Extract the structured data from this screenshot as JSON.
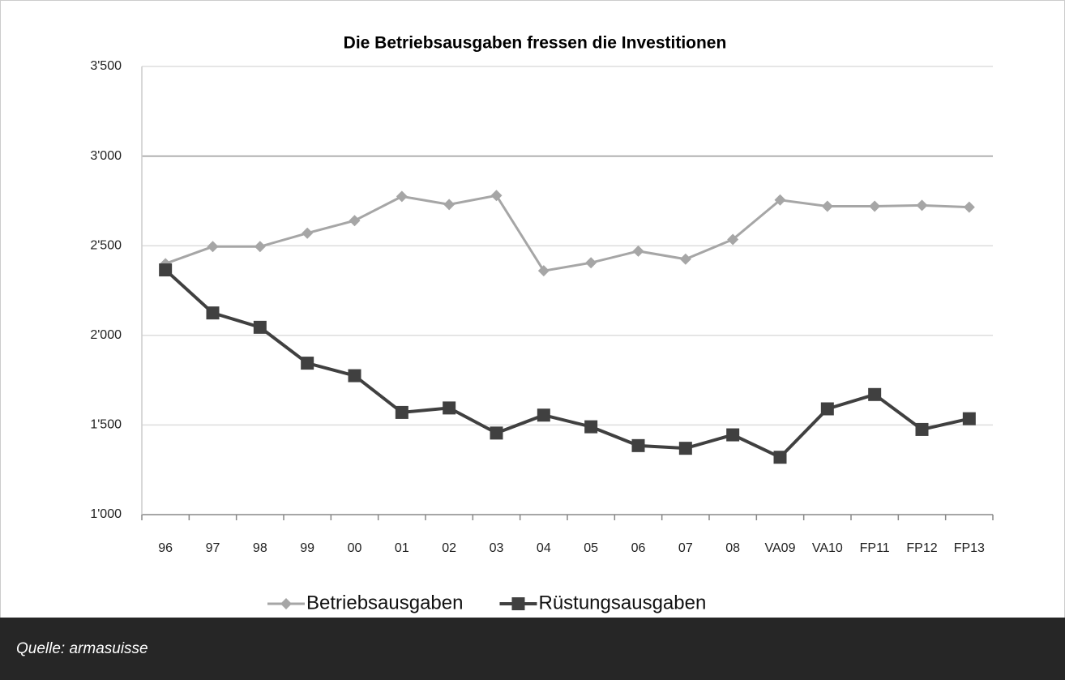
{
  "chart_data": {
    "type": "line",
    "title": "Die Betriebsausgaben fressen die Investitionen",
    "categories": [
      "96",
      "97",
      "98",
      "99",
      "00",
      "01",
      "02",
      "03",
      "04",
      "05",
      "06",
      "07",
      "08",
      "VA09",
      "VA10",
      "FP11",
      "FP12",
      "FP13"
    ],
    "series": [
      {
        "name": "Betriebsausgaben",
        "color": "#a6a6a6",
        "marker": "diamond",
        "values": [
          2400,
          2495,
          2495,
          2570,
          2640,
          2775,
          2730,
          2780,
          2360,
          2405,
          2470,
          2425,
          2535,
          2755,
          2720,
          2720,
          2725,
          2715
        ]
      },
      {
        "name": "Rüstungsausgaben",
        "color": "#404040",
        "marker": "square",
        "values": [
          2365,
          2125,
          2045,
          1845,
          1775,
          1570,
          1595,
          1455,
          1555,
          1490,
          1385,
          1370,
          1445,
          1320,
          1590,
          1670,
          1475,
          1535
        ]
      }
    ],
    "ylim": [
      1000,
      3500
    ],
    "yticks": [
      {
        "value": 1000,
        "label": "1'000"
      },
      {
        "value": 1500,
        "label": "1'500"
      },
      {
        "value": 2000,
        "label": "2'000"
      },
      {
        "value": 2500,
        "label": "2'500"
      },
      {
        "value": 3000,
        "label": "3'000"
      },
      {
        "value": 3500,
        "label": "3'500"
      }
    ],
    "grid": true,
    "legend": "bottom"
  },
  "footer": {
    "source": "Quelle: armasuisse"
  }
}
